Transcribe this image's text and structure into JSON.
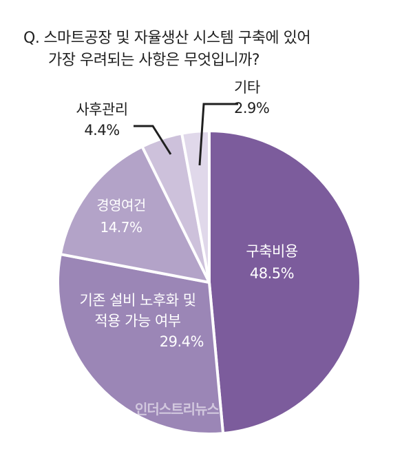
{
  "question": {
    "prefix": "Q.",
    "line1": "스마트공장 및 자율생산 시스템 구축에 있어",
    "line2": "가장 우려되는 사항은 무엇입니까?"
  },
  "watermark": "인더스트리뉴스",
  "chart_data": {
    "type": "pie",
    "title": "Q. 스마트공장 및 자율생산 시스템 구축에 있어 가장 우려되는 사항은 무엇입니까?",
    "slices": [
      {
        "label": "구축비용",
        "label_lines": [
          "구축비용"
        ],
        "value": 48.5,
        "value_text": "48.5%",
        "color": "#7c5c9c",
        "text_color": "#ffffff"
      },
      {
        "label": "기존 설비 노후화 및 적용 가능 여부",
        "label_lines": [
          "기존 설비 노후화 및",
          "적용 가능 여부"
        ],
        "value": 29.4,
        "value_text": "29.4%",
        "color": "#9b86b6",
        "text_color": "#ffffff"
      },
      {
        "label": "경영여건",
        "label_lines": [
          "경영여건"
        ],
        "value": 14.7,
        "value_text": "14.7%",
        "color": "#b3a3c8",
        "text_color": "#ffffff"
      },
      {
        "label": "사후관리",
        "label_lines": [
          "사후관리"
        ],
        "value": 4.4,
        "value_text": "4.4%",
        "color": "#cdc1db",
        "text_color": "#1f1f1f"
      },
      {
        "label": "기타",
        "label_lines": [
          "기타"
        ],
        "value": 2.9,
        "value_text": "2.9%",
        "color": "#e0d8ea",
        "text_color": "#1f1f1f"
      }
    ]
  }
}
